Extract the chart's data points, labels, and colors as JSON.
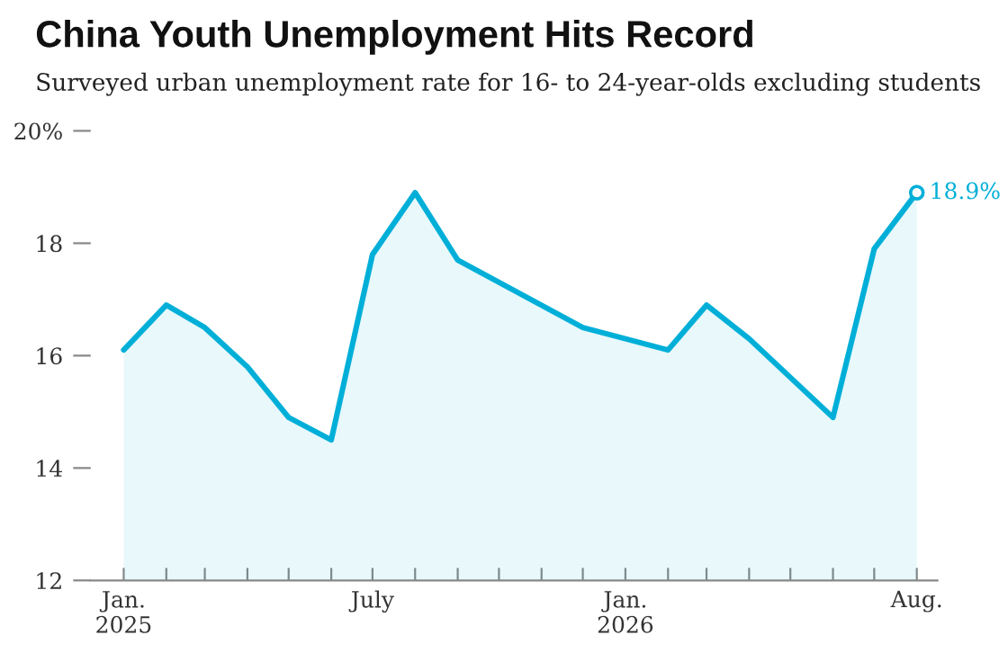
{
  "chart_data": {
    "type": "area",
    "title": "China Youth Unemployment Hits Record",
    "subtitle": "Surveyed urban unemployment rate for 16- to 24-year-olds excluding students",
    "x": [
      "2025-01",
      "2025-02",
      "2025-03",
      "2025-04",
      "2025-05",
      "2025-06",
      "2025-07",
      "2025-08",
      "2025-09",
      "2025-12",
      "2026-02",
      "2026-03",
      "2026-04",
      "2026-06",
      "2026-07",
      "2026-08"
    ],
    "series": [
      {
        "color": "#00afd8",
        "values": [
          16.1,
          16.9,
          16.5,
          15.8,
          14.9,
          14.5,
          17.8,
          18.9,
          17.7,
          16.5,
          16.1,
          16.9,
          16.3,
          14.9,
          17.9,
          18.9
        ]
      }
    ],
    "xlim": [
      "2024-12-08",
      "2026-08-16"
    ],
    "xticks": [
      {
        "value": "2025-01",
        "label": "Jan.\n2025"
      },
      {
        "value": "2025-02",
        "label": null
      },
      {
        "value": "2025-03",
        "label": null
      },
      {
        "value": "2025-04",
        "label": null
      },
      {
        "value": "2025-05",
        "label": null
      },
      {
        "value": "2025-06",
        "label": null
      },
      {
        "value": "2025-07",
        "label": "July"
      },
      {
        "value": "2025-08",
        "label": null
      },
      {
        "value": "2025-09",
        "label": null
      },
      {
        "value": "2025-10",
        "label": null
      },
      {
        "value": "2025-11",
        "label": null
      },
      {
        "value": "2025-12",
        "label": null
      },
      {
        "value": "2026-01",
        "label": "Jan.\n2026"
      },
      {
        "value": "2026-02",
        "label": null
      },
      {
        "value": "2026-03",
        "label": null
      },
      {
        "value": "2026-04",
        "label": null
      },
      {
        "value": "2026-05",
        "label": null
      },
      {
        "value": "2026-06",
        "label": null
      },
      {
        "value": "2026-07",
        "label": null
      },
      {
        "value": "2026-08",
        "label": "Aug."
      }
    ],
    "ylim": [
      12,
      20
    ],
    "yticks": [
      {
        "value": 20,
        "label": "20%"
      },
      18,
      16,
      14,
      12
    ],
    "grid": false,
    "annotations": [
      {
        "text": "18.9%",
        "x": "2026-08",
        "y": 18.9
      }
    ]
  }
}
